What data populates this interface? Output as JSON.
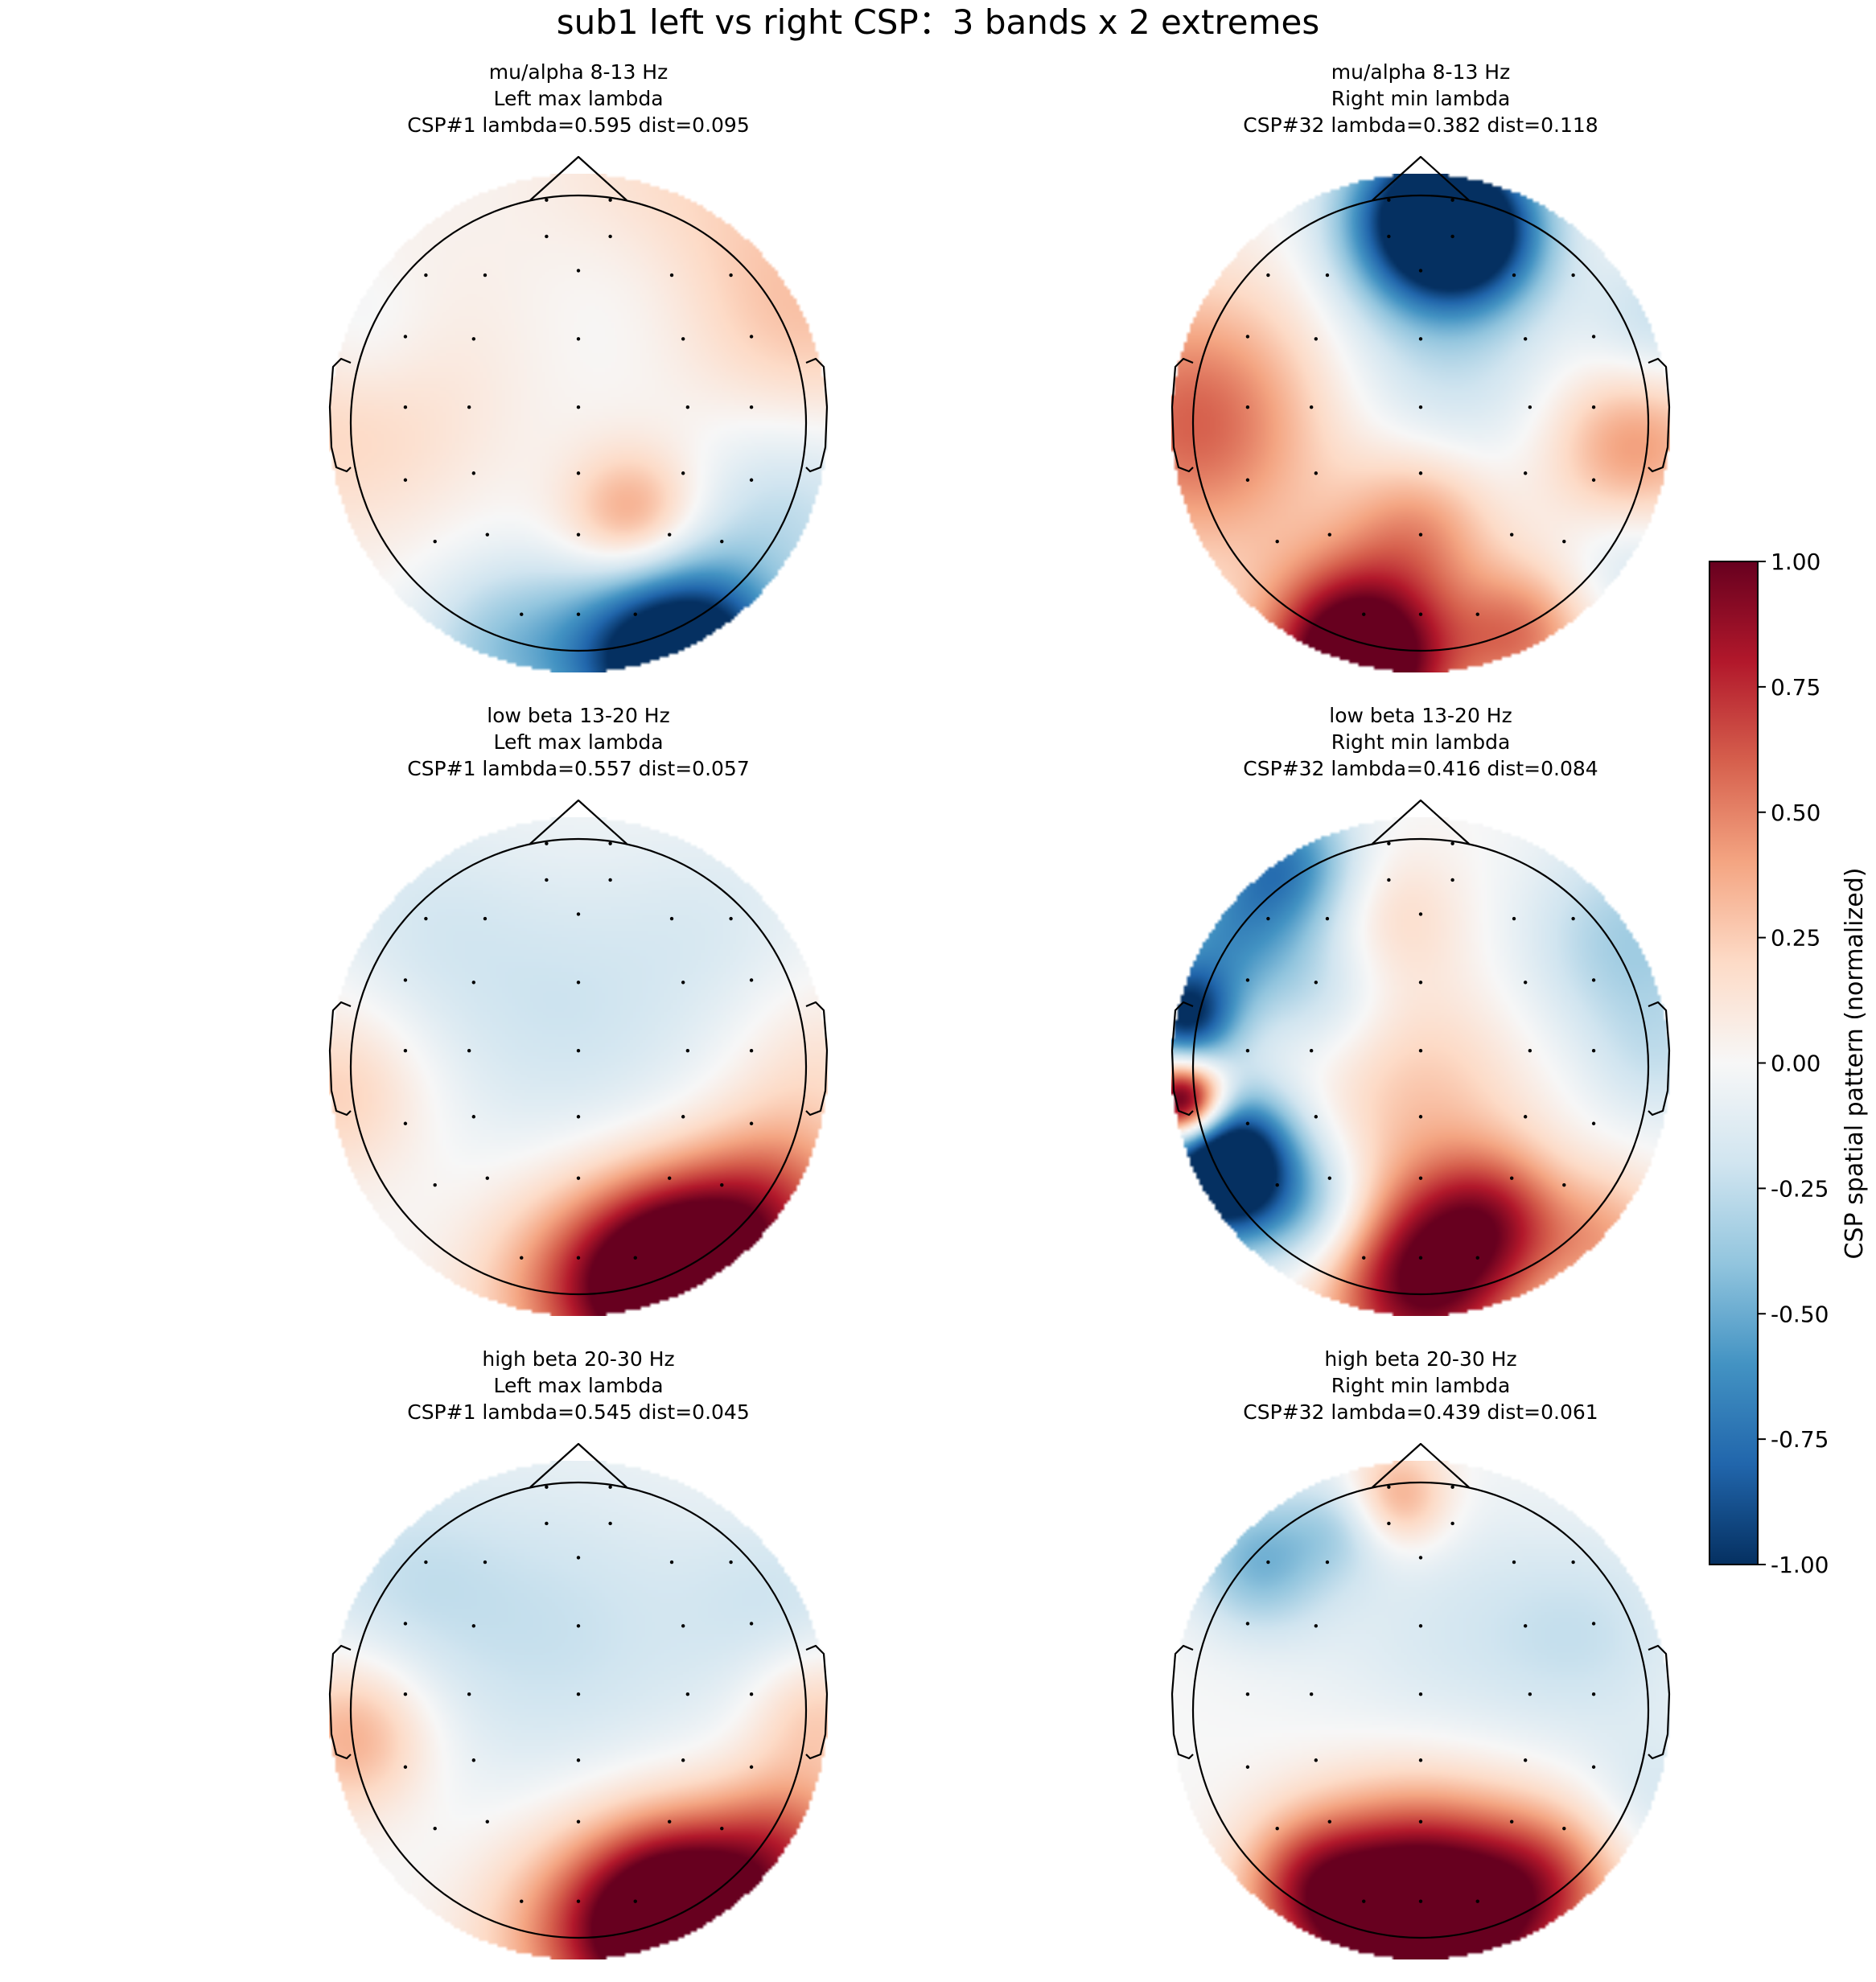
{
  "figure": {
    "title": "sub1 left vs right CSP：3 bands x 2 extremes"
  },
  "chart_data": {
    "type": "heatmap",
    "title": "sub1 left vs right CSP：3 bands x 2 extremes",
    "colormap": "RdBu_r",
    "colors": {
      "neg": "#053061",
      "mid": "#f7f7f7",
      "pos": "#67001f"
    },
    "colorbar": {
      "label": "CSP spatial pattern (normalized)",
      "range": [
        -1.0,
        1.0
      ],
      "ticks": [
        "1.00",
        "0.75",
        "0.50",
        "0.25",
        "0.00",
        "-0.25",
        "-0.50",
        "-0.75",
        "-1.00"
      ]
    },
    "panels": [
      {
        "title_lines": [
          "mu/alpha 8-13 Hz",
          "Left max lambda",
          "CSP#1  lambda=0.595  dist=0.095"
        ],
        "band": "mu/alpha 8-13 Hz",
        "extreme": "Left max lambda",
        "component": "CSP#1",
        "lambda": 0.595,
        "dist": 0.095,
        "blobs": [
          {
            "x": 0.22,
            "y": 0.38,
            "v": 0.45,
            "s": 0.19
          },
          {
            "x": 0.4,
            "y": -0.85,
            "v": 0.25,
            "s": 0.4
          },
          {
            "x": 0.95,
            "y": -0.4,
            "v": 0.25,
            "s": 0.35
          },
          {
            "x": -0.95,
            "y": -0.15,
            "v": 0.3,
            "s": 0.4
          },
          {
            "x": 0.45,
            "y": 0.95,
            "v": -1.3,
            "s": 0.26
          },
          {
            "x": 0.15,
            "y": 0.92,
            "v": -0.35,
            "s": 0.25
          },
          {
            "x": 0.85,
            "y": 0.35,
            "v": -0.25,
            "s": 0.3
          },
          {
            "x": -0.9,
            "y": -0.35,
            "v": -0.25,
            "s": 0.25
          },
          {
            "x": -0.3,
            "y": 0.9,
            "v": -0.35,
            "s": 0.25
          },
          {
            "x": 0.25,
            "y": -0.6,
            "v": -0.15,
            "s": 0.3
          }
        ]
      },
      {
        "title_lines": [
          "mu/alpha 8-13 Hz",
          "Right min lambda",
          "CSP#32  lambda=0.382  dist=0.118"
        ],
        "band": "mu/alpha 8-13 Hz",
        "extreme": "Right min lambda",
        "component": "CSP#32",
        "lambda": 0.382,
        "dist": 0.118,
        "blobs": [
          {
            "x": 0.05,
            "y": -0.82,
            "v": -1.35,
            "s": 0.24
          },
          {
            "x": 0.25,
            "y": -0.75,
            "v": -0.5,
            "s": 0.2
          },
          {
            "x": -0.25,
            "y": 0.95,
            "v": 1.4,
            "s": 0.26
          },
          {
            "x": -0.9,
            "y": 0.0,
            "v": 0.6,
            "s": 0.38
          },
          {
            "x": 0.85,
            "y": 0.1,
            "v": 0.45,
            "s": 0.25
          },
          {
            "x": 0.0,
            "y": 0.4,
            "v": 0.4,
            "s": 0.22
          },
          {
            "x": 0.4,
            "y": 0.85,
            "v": 0.5,
            "s": 0.2
          },
          {
            "x": 0.1,
            "y": -0.2,
            "v": -0.22,
            "s": 0.35
          },
          {
            "x": 0.95,
            "y": -0.4,
            "v": -0.25,
            "s": 0.2
          },
          {
            "x": 0.85,
            "y": 0.55,
            "v": -0.2,
            "s": 0.2
          }
        ]
      },
      {
        "title_lines": [
          "low beta 13-20 Hz",
          "Left max lambda",
          "CSP#1  lambda=0.557  dist=0.057"
        ],
        "band": "low beta 13-20 Hz",
        "extreme": "Left max lambda",
        "component": "CSP#1",
        "lambda": 0.557,
        "dist": 0.057,
        "blobs": [
          {
            "x": 0.42,
            "y": 0.85,
            "v": 1.4,
            "s": 0.28
          },
          {
            "x": 0.8,
            "y": 0.55,
            "v": 0.5,
            "s": 0.25
          },
          {
            "x": 0.0,
            "y": 0.9,
            "v": 0.45,
            "s": 0.3
          },
          {
            "x": -0.95,
            "y": 0.1,
            "v": 0.25,
            "s": 0.25
          },
          {
            "x": 0.95,
            "y": 0.0,
            "v": 0.15,
            "s": 0.25
          },
          {
            "x": -0.05,
            "y": -0.2,
            "v": -0.2,
            "s": 0.45
          },
          {
            "x": -0.65,
            "y": -0.6,
            "v": -0.12,
            "s": 0.3
          },
          {
            "x": 0.6,
            "y": -0.6,
            "v": -0.1,
            "s": 0.3
          }
        ]
      },
      {
        "title_lines": [
          "low beta 13-20 Hz",
          "Right min lambda",
          "CSP#32  lambda=0.416  dist=0.084"
        ],
        "band": "low beta 13-20 Hz",
        "extreme": "Right min lambda",
        "component": "CSP#32",
        "lambda": 0.416,
        "dist": 0.084,
        "blobs": [
          {
            "x": -0.8,
            "y": 0.4,
            "v": -1.6,
            "s": 0.2
          },
          {
            "x": -0.95,
            "y": 0.15,
            "v": 1.5,
            "s": 0.12
          },
          {
            "x": -0.95,
            "y": -0.2,
            "v": -0.9,
            "s": 0.14
          },
          {
            "x": -0.55,
            "y": -0.82,
            "v": -0.65,
            "s": 0.2
          },
          {
            "x": -0.8,
            "y": -0.5,
            "v": -0.5,
            "s": 0.22
          },
          {
            "x": 0.85,
            "y": -0.5,
            "v": -0.35,
            "s": 0.3
          },
          {
            "x": 0.95,
            "y": 0.0,
            "v": -0.15,
            "s": 0.2
          },
          {
            "x": 0.0,
            "y": 0.85,
            "v": 1.05,
            "s": 0.28
          },
          {
            "x": 0.3,
            "y": 0.6,
            "v": 0.5,
            "s": 0.2
          },
          {
            "x": 0.0,
            "y": 0.1,
            "v": 0.25,
            "s": 0.3
          },
          {
            "x": -0.1,
            "y": -0.6,
            "v": 0.18,
            "s": 0.2
          },
          {
            "x": -0.4,
            "y": 0.6,
            "v": -0.4,
            "s": 0.2
          },
          {
            "x": 0.75,
            "y": 0.7,
            "v": 0.35,
            "s": 0.2
          },
          {
            "x": -0.4,
            "y": -0.3,
            "v": -0.2,
            "s": 0.2
          }
        ]
      },
      {
        "title_lines": [
          "high beta 20-30 Hz",
          "Left max lambda",
          "CSP#1  lambda=0.545  dist=0.045"
        ],
        "band": "high beta 20-30 Hz",
        "extreme": "Left max lambda",
        "component": "CSP#1",
        "lambda": 0.545,
        "dist": 0.045,
        "blobs": [
          {
            "x": 0.42,
            "y": 0.85,
            "v": 1.45,
            "s": 0.28
          },
          {
            "x": 0.85,
            "y": 0.55,
            "v": 0.5,
            "s": 0.22
          },
          {
            "x": 0.0,
            "y": 0.9,
            "v": 0.4,
            "s": 0.3
          },
          {
            "x": -0.9,
            "y": 0.1,
            "v": 0.4,
            "s": 0.22
          },
          {
            "x": 0.95,
            "y": 0.0,
            "v": 0.3,
            "s": 0.2
          },
          {
            "x": -0.1,
            "y": -0.3,
            "v": -0.22,
            "s": 0.5
          },
          {
            "x": -0.75,
            "y": -0.55,
            "v": -0.15,
            "s": 0.3
          },
          {
            "x": 0.85,
            "y": -0.4,
            "v": -0.18,
            "s": 0.3
          }
        ]
      },
      {
        "title_lines": [
          "high beta 20-30 Hz",
          "Right min lambda",
          "CSP#32  lambda=0.439  dist=0.061"
        ],
        "band": "high beta 20-30 Hz",
        "extreme": "Right min lambda",
        "component": "CSP#32",
        "lambda": 0.439,
        "dist": 0.061,
        "blobs": [
          {
            "x": 0.0,
            "y": 0.85,
            "v": 1.5,
            "s": 0.32
          },
          {
            "x": -0.45,
            "y": 0.7,
            "v": 0.5,
            "s": 0.2
          },
          {
            "x": 0.5,
            "y": 0.7,
            "v": 0.5,
            "s": 0.22
          },
          {
            "x": -0.65,
            "y": -0.6,
            "v": -0.45,
            "s": 0.2
          },
          {
            "x": -0.1,
            "y": -0.85,
            "v": 0.45,
            "s": 0.15
          },
          {
            "x": -0.3,
            "y": -0.75,
            "v": -0.25,
            "s": 0.15
          },
          {
            "x": 0.1,
            "y": -0.3,
            "v": -0.15,
            "s": 0.4
          },
          {
            "x": 0.7,
            "y": -0.3,
            "v": -0.18,
            "s": 0.3
          },
          {
            "x": 0.95,
            "y": 0.35,
            "v": -0.15,
            "s": 0.2
          }
        ]
      }
    ],
    "electrodes": [
      [
        -0.14,
        -0.98
      ],
      [
        0.14,
        -0.98
      ],
      [
        -0.14,
        -0.82
      ],
      [
        0.14,
        -0.82
      ],
      [
        -0.67,
        -0.65
      ],
      [
        -0.41,
        -0.65
      ],
      [
        0.0,
        -0.67
      ],
      [
        0.41,
        -0.65
      ],
      [
        0.67,
        -0.65
      ],
      [
        -0.76,
        -0.38
      ],
      [
        -0.46,
        -0.37
      ],
      [
        0.0,
        -0.37
      ],
      [
        0.46,
        -0.37
      ],
      [
        0.76,
        -0.38
      ],
      [
        -0.76,
        -0.07
      ],
      [
        -0.48,
        -0.07
      ],
      [
        0.0,
        -0.07
      ],
      [
        0.48,
        -0.07
      ],
      [
        0.76,
        -0.07
      ],
      [
        -0.76,
        0.25
      ],
      [
        -0.46,
        0.22
      ],
      [
        0.0,
        0.22
      ],
      [
        0.46,
        0.22
      ],
      [
        0.76,
        0.25
      ],
      [
        -0.63,
        0.52
      ],
      [
        -0.4,
        0.49
      ],
      [
        0.0,
        0.49
      ],
      [
        0.4,
        0.49
      ],
      [
        0.63,
        0.52
      ],
      [
        -0.25,
        0.84
      ],
      [
        0.0,
        0.84
      ],
      [
        0.25,
        0.84
      ]
    ]
  }
}
